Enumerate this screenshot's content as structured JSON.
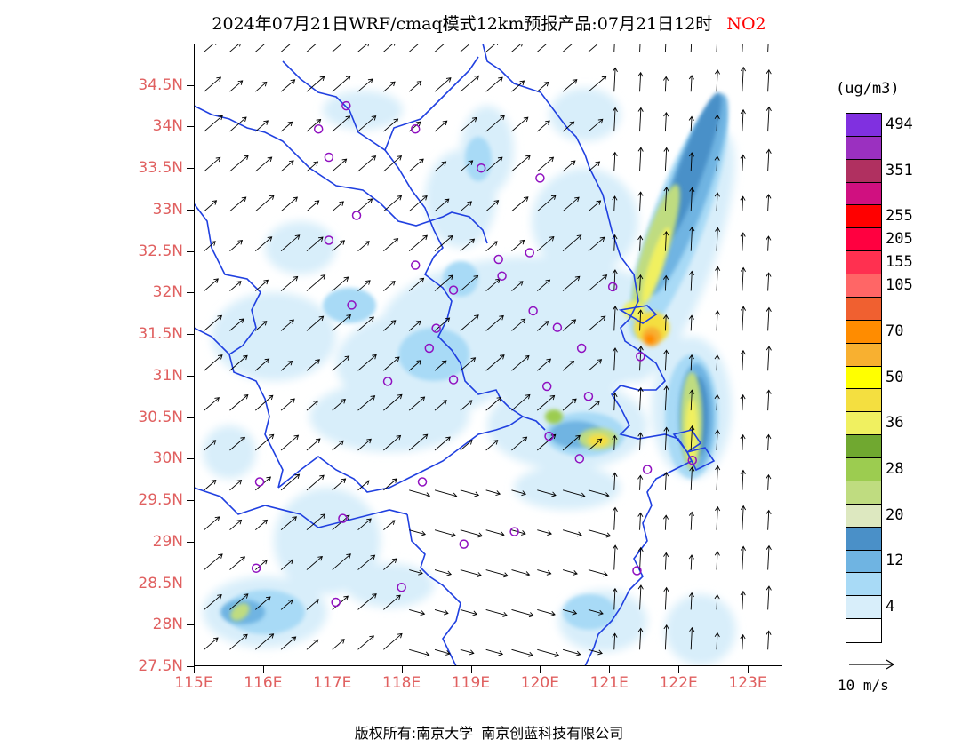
{
  "title": {
    "main": "2024年07月21日WRF/cmaq模式12km预报产品:07月21日12时",
    "species": "NO2",
    "species_color": "#ff0000"
  },
  "axes": {
    "lon_range": [
      115,
      123.5
    ],
    "lat_range": [
      27.5,
      35
    ],
    "lat_ticks": [
      "34.5N",
      "34N",
      "33.5N",
      "33N",
      "32.5N",
      "32N",
      "31.5N",
      "31N",
      "30.5N",
      "30N",
      "29.5N",
      "29N",
      "28.5N",
      "28N",
      "27.5N"
    ],
    "lat_tick_values": [
      34.5,
      34,
      33.5,
      33,
      32.5,
      32,
      31.5,
      31,
      30.5,
      30,
      29.5,
      29,
      28.5,
      28,
      27.5
    ],
    "lon_ticks": [
      "115E",
      "116E",
      "117E",
      "118E",
      "119E",
      "120E",
      "121E",
      "122E",
      "123E"
    ],
    "lon_tick_values": [
      115,
      116,
      117,
      118,
      119,
      120,
      121,
      122,
      123
    ],
    "tick_label_color": "#e06060"
  },
  "legend": {
    "unit": "(ug/m3)",
    "colors": [
      "#ffffff",
      "#d8eefa",
      "#a8daf6",
      "#6fb4e2",
      "#4a90c8",
      "#dde8c0",
      "#bfdc80",
      "#9ccc50",
      "#70a830",
      "#f0f060",
      "#f4df40",
      "#ffff00",
      "#f8b030",
      "#ff8c00",
      "#f06030",
      "#ff6666",
      "#ff3050",
      "#ff0040",
      "#ff0000",
      "#d01080",
      "#b03060",
      "#9b30c0",
      "#8030e0"
    ],
    "labels": [
      "4",
      "12",
      "20",
      "28",
      "36",
      "50",
      "70",
      "105",
      "155",
      "205",
      "255",
      "351",
      "494"
    ],
    "label_index": [
      1,
      3,
      5,
      7,
      9,
      11,
      13,
      15,
      16,
      17,
      18,
      20,
      22
    ]
  },
  "reference_vector": {
    "label": "10 m/s"
  },
  "map": {
    "boundary_color": "#2040e0",
    "site_color": "#9010c0",
    "sites": [
      [
        117.2,
        34.25
      ],
      [
        116.8,
        33.97
      ],
      [
        118.2,
        33.97
      ],
      [
        116.95,
        33.63
      ],
      [
        119.15,
        33.5
      ],
      [
        120.0,
        33.38
      ],
      [
        117.35,
        32.93
      ],
      [
        116.95,
        32.63
      ],
      [
        118.2,
        32.33
      ],
      [
        119.4,
        32.4
      ],
      [
        119.85,
        32.48
      ],
      [
        119.45,
        32.2
      ],
      [
        118.75,
        32.03
      ],
      [
        121.05,
        32.07
      ],
      [
        117.28,
        31.85
      ],
      [
        119.9,
        31.78
      ],
      [
        120.25,
        31.58
      ],
      [
        118.5,
        31.57
      ],
      [
        118.4,
        31.33
      ],
      [
        120.6,
        31.33
      ],
      [
        121.45,
        31.23
      ],
      [
        117.8,
        30.93
      ],
      [
        118.75,
        30.95
      ],
      [
        120.1,
        30.87
      ],
      [
        120.7,
        30.75
      ],
      [
        120.13,
        30.27
      ],
      [
        120.57,
        30.0
      ],
      [
        121.55,
        29.87
      ],
      [
        122.2,
        29.98
      ],
      [
        115.95,
        29.72
      ],
      [
        118.3,
        29.72
      ],
      [
        117.15,
        29.28
      ],
      [
        119.63,
        29.12
      ],
      [
        118.9,
        28.97
      ],
      [
        115.9,
        28.68
      ],
      [
        118.0,
        28.45
      ],
      [
        117.05,
        28.27
      ],
      [
        121.4,
        28.65
      ]
    ]
  },
  "footer": {
    "left": "版权所有:南京大学",
    "right": "南京创蓝科技有限公司"
  }
}
